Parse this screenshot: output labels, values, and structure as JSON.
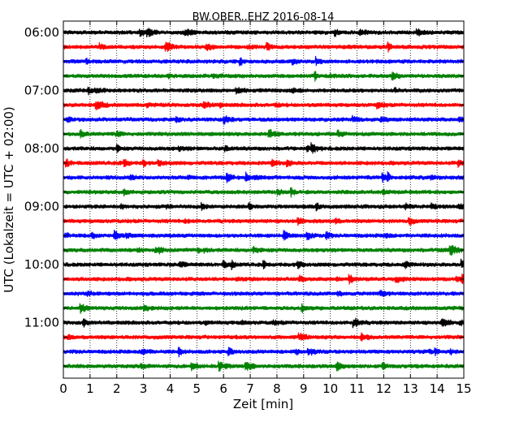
{
  "chart_data": {
    "type": "line",
    "title": "BW.OBER..EHZ 2016-08-14",
    "xlabel": "Zeit  [min]",
    "ylabel": "UTC (Lokalzeit = UTC + 02:00)",
    "xlim": [
      0,
      15
    ],
    "x_ticks": [
      "0",
      "1",
      "2",
      "3",
      "4",
      "5",
      "6",
      "7",
      "8",
      "9",
      "10",
      "11",
      "12",
      "13",
      "14",
      "15"
    ],
    "y_tick_labels": [
      "06:00",
      "07:00",
      "08:00",
      "09:00",
      "10:00",
      "11:00"
    ],
    "trace_interval_minutes": 15,
    "trace_start_times": [
      "06:00",
      "06:15",
      "06:30",
      "06:45",
      "07:00",
      "07:15",
      "07:30",
      "07:45",
      "08:00",
      "08:15",
      "08:30",
      "08:45",
      "09:00",
      "09:15",
      "09:30",
      "09:45",
      "10:00",
      "10:15",
      "10:30",
      "10:45",
      "11:00",
      "11:15",
      "11:30",
      "11:45"
    ],
    "color_cycle": [
      "#000000",
      "#ff0000",
      "#0000ff",
      "#008000"
    ],
    "grid": "vertical dotted"
  }
}
